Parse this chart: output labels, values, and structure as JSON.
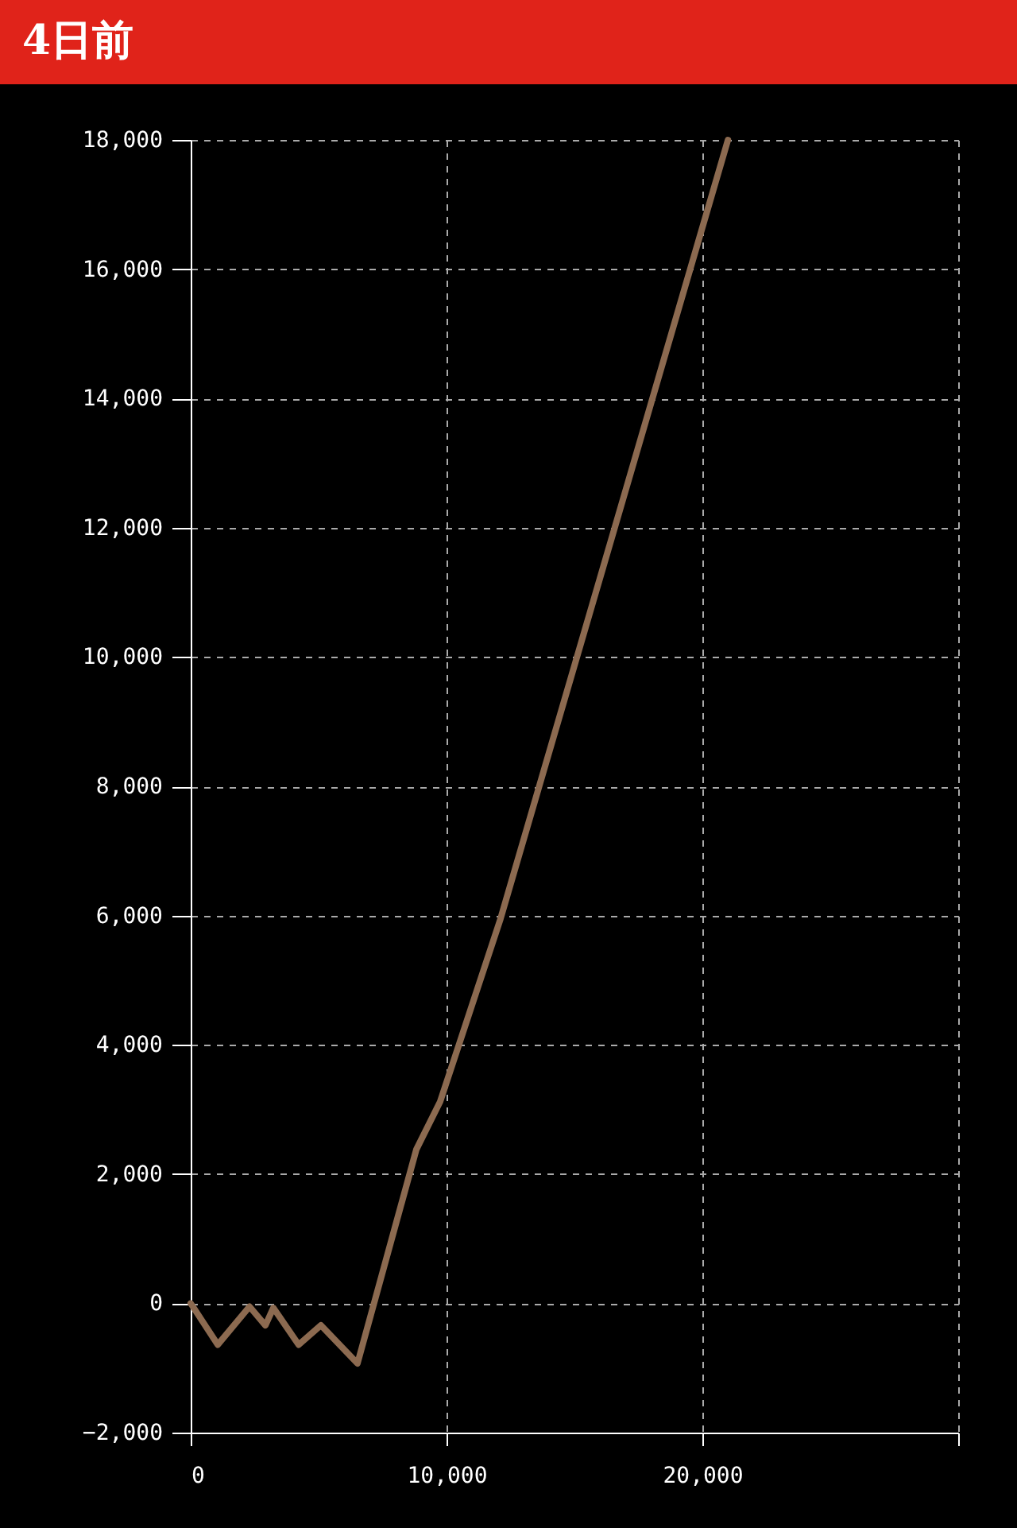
{
  "chart_data": {
    "type": "line",
    "title": "4日前",
    "x": [
      0,
      1060,
      2300,
      2920,
      3230,
      4220,
      5090,
      6520,
      8820,
      9750,
      12110,
      21000
    ],
    "series": [
      {
        "color": "#8c6a50",
        "values": [
          0,
          -640,
          -50,
          -340,
          -70,
          -640,
          -340,
          -930,
          2380,
          3120,
          5950,
          18000
        ]
      }
    ],
    "xlim": [
      0,
      30000
    ],
    "xticks": [
      0,
      {
        "value": 10000,
        "label": "10,000"
      },
      {
        "value": 20000,
        "label": "20,000"
      },
      {
        "value": 30000,
        "label": null
      }
    ],
    "ylim": [
      -2000,
      18000
    ],
    "yticks": [
      {
        "value": -2000,
        "label": "−2,000"
      },
      0,
      {
        "value": 2000,
        "label": "2,000"
      },
      {
        "value": 4000,
        "label": "4,000"
      },
      {
        "value": 6000,
        "label": "6,000"
      },
      {
        "value": 8000,
        "label": "8,000"
      },
      {
        "value": 10000,
        "label": "10,000"
      },
      {
        "value": 12000,
        "label": "12,000"
      },
      {
        "value": 14000,
        "label": "14,000"
      },
      {
        "value": 16000,
        "label": "16,000"
      },
      {
        "value": 18000,
        "label": "18,000"
      }
    ],
    "grid": true,
    "line_style": "solid",
    "marker": "none"
  }
}
